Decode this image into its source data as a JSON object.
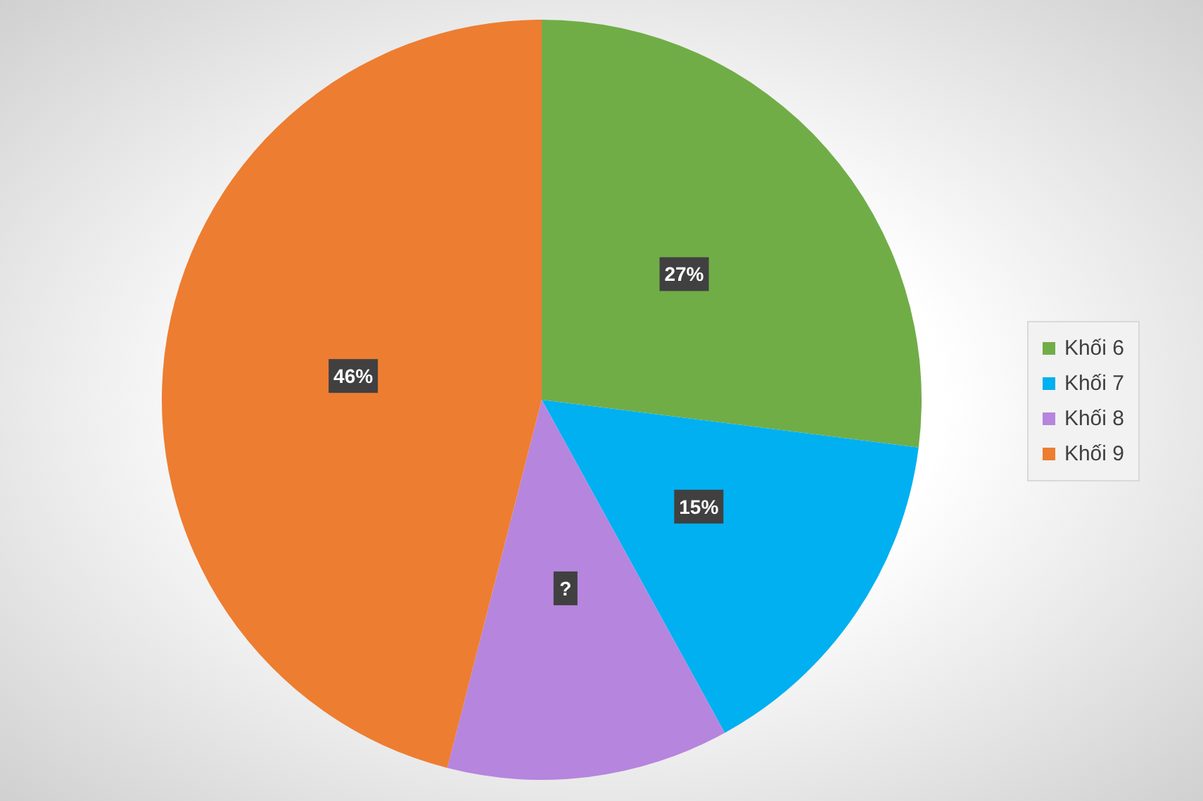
{
  "chart_data": {
    "type": "pie",
    "categories": [
      "Khối 6",
      "Khối 7",
      "Khối 8",
      "Khối 9"
    ],
    "values": [
      27,
      15,
      12,
      46
    ],
    "value_labels": [
      "27%",
      "15%",
      "?",
      "46%"
    ],
    "colors": [
      "#70ad47",
      "#00b0f0",
      "#b685de",
      "#ed7d31"
    ],
    "legend": "right"
  }
}
